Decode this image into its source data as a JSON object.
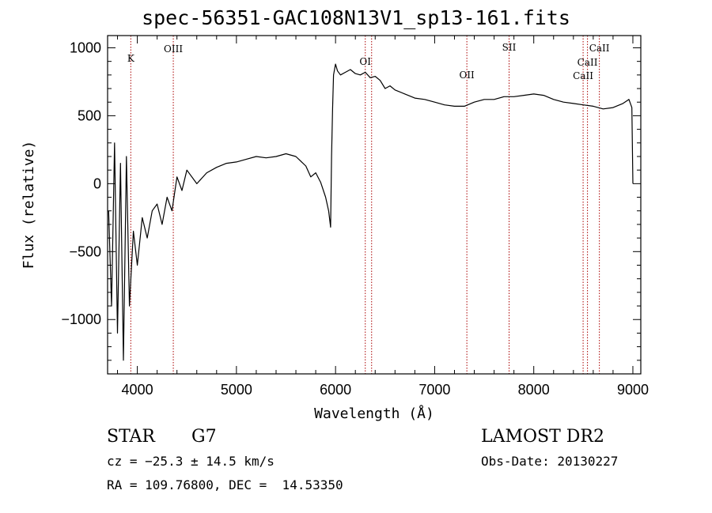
{
  "title": "spec-56351-GAC108N13V1_sp13-161.fits",
  "info": {
    "class": "STAR",
    "subclass": "G7",
    "cz": "cz = −25.3 ± 14.5 km/s",
    "radec": "RA = 109.76800, DEC =  14.53350",
    "survey": "LAMOST DR2",
    "obsdate": "Obs-Date: 20130227"
  },
  "chart_data": {
    "type": "line",
    "title": "spec-56351-GAC108N13V1_sp13-161.fits",
    "xlabel": "Wavelength (Å)",
    "ylabel": "Flux (relative)",
    "xlim": [
      3700,
      9080
    ],
    "ylim": [
      -1400,
      1090
    ],
    "xticks": [
      4000,
      5000,
      6000,
      7000,
      8000,
      9000
    ],
    "yticks": [
      1000,
      500,
      0,
      -500,
      -1000
    ],
    "ytick_labels": [
      "1000",
      "500",
      "0",
      "−500",
      "−1000"
    ],
    "grid": false,
    "line_color": "#000000",
    "marker_color": "#aa0000",
    "lines": [
      {
        "label": "K",
        "wavelength": 3934
      },
      {
        "label": "OIII",
        "wavelength": 4363
      },
      {
        "label": "OI",
        "wavelength": 6300
      },
      {
        "label": "",
        "wavelength": 6364
      },
      {
        "label": "OII",
        "wavelength": 7325
      },
      {
        "label": "SII",
        "wavelength": 7751
      },
      {
        "label": "CaII",
        "wavelength": 8498
      },
      {
        "label": "CaII",
        "wavelength": 8542
      },
      {
        "label": "CaII",
        "wavelength": 8662
      }
    ],
    "series": [
      {
        "x": [
          3710,
          3740,
          3770,
          3800,
          3830,
          3860,
          3890,
          3920,
          3960,
          4000,
          4050,
          4100,
          4150,
          4200,
          4250,
          4300,
          4350,
          4400,
          4450,
          4500,
          4600,
          4700,
          4800,
          4900,
          5000,
          5100,
          5200,
          5300,
          5400,
          5500,
          5600,
          5700,
          5750,
          5800,
          5850,
          5900,
          5930,
          5950,
          5960,
          5970,
          5980,
          6000,
          6020,
          6050,
          6100,
          6150,
          6200,
          6250,
          6300,
          6350,
          6400,
          6450,
          6500,
          6550,
          6600,
          6700,
          6800,
          6900,
          7000,
          7100,
          7200,
          7300,
          7400,
          7500,
          7600,
          7700,
          7800,
          7900,
          8000,
          8100,
          8200,
          8300,
          8400,
          8500,
          8600,
          8700,
          8800,
          8900,
          8960,
          8990,
          9000
        ],
        "y": [
          -200,
          -900,
          300,
          -1100,
          150,
          -1300,
          200,
          -900,
          -350,
          -600,
          -250,
          -400,
          -200,
          -150,
          -300,
          -100,
          -200,
          50,
          -50,
          100,
          0,
          80,
          120,
          150,
          160,
          180,
          200,
          190,
          200,
          220,
          200,
          130,
          50,
          80,
          10,
          -100,
          -200,
          -320,
          200,
          550,
          800,
          880,
          830,
          800,
          820,
          840,
          810,
          800,
          820,
          780,
          790,
          760,
          700,
          720,
          690,
          660,
          630,
          620,
          600,
          580,
          570,
          570,
          600,
          620,
          620,
          640,
          640,
          650,
          660,
          650,
          620,
          600,
          590,
          580,
          570,
          550,
          560,
          590,
          620,
          560,
          0
        ]
      }
    ]
  }
}
